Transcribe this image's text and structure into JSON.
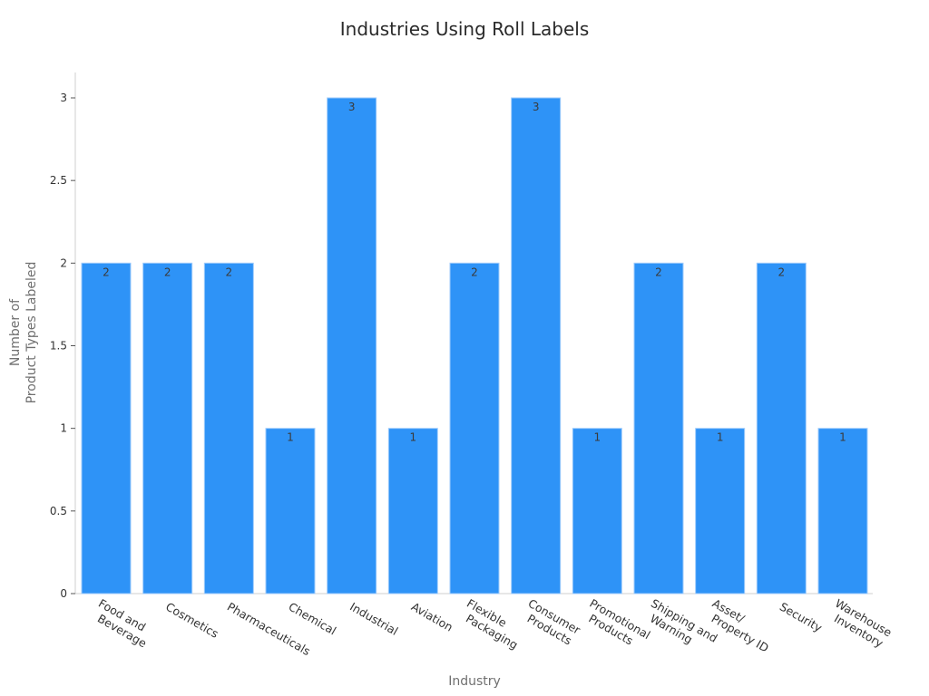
{
  "chart_data": {
    "type": "bar",
    "title": "Industries Using Roll Labels",
    "xlabel": "Industry",
    "ylabel": [
      "Number of",
      "Product Types Labeled"
    ],
    "ylim": [
      0,
      3
    ],
    "yticks": [
      "0",
      "0.5",
      "1",
      "1.5",
      "2",
      "2.5",
      "3"
    ],
    "ytick_values": [
      0,
      0.5,
      1,
      1.5,
      2,
      2.5,
      3
    ],
    "categories": [
      [
        "Food and",
        "Beverage"
      ],
      [
        "Cosmetics"
      ],
      [
        "Pharmaceuticals"
      ],
      [
        "Chemical"
      ],
      [
        "Industrial"
      ],
      [
        "Aviation"
      ],
      [
        "Flexible",
        "Packaging"
      ],
      [
        "Consumer",
        "Products"
      ],
      [
        "Promotional",
        "Products"
      ],
      [
        "Shipping and",
        "Warning"
      ],
      [
        "Asset/",
        "Property ID"
      ],
      [
        "Security"
      ],
      [
        "Warehouse",
        "Inventory"
      ]
    ],
    "values": [
      2,
      2,
      2,
      1,
      3,
      1,
      2,
      3,
      1,
      2,
      1,
      2,
      1
    ],
    "data_labels": [
      "2",
      "2",
      "2",
      "1",
      "3",
      "1",
      "2",
      "3",
      "1",
      "2",
      "1",
      "2",
      "1"
    ],
    "bar_color": "#2e93f7",
    "bar_edge_color": "#9fcbfb",
    "grid": false,
    "legend": "none"
  }
}
